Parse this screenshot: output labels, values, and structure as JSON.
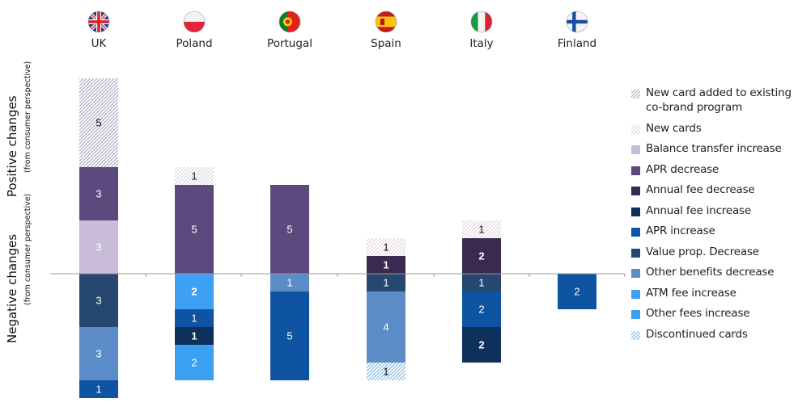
{
  "chart_data": {
    "type": "bar",
    "subtype": "stacked diverging",
    "categories": [
      "UK",
      "Poland",
      "Portugal",
      "Spain",
      "Italy",
      "Finland"
    ],
    "axis_titles": {
      "positive": "Positive changes",
      "positive_sub": "(from consumer perspective)",
      "negative": "Negative changes",
      "negative_sub": "(from consumer perspective)"
    },
    "legend_position": "right",
    "series": [
      {
        "name": "New card added to existing co-brand program",
        "color": "#8a7fa8",
        "pattern": "hatch-dense",
        "values": [
          5,
          0,
          0,
          0,
          0,
          0
        ]
      },
      {
        "name": "New cards",
        "color": "#c9b8c8",
        "pattern": "hatch-light",
        "values": [
          0,
          1,
          0,
          1,
          1,
          0
        ]
      },
      {
        "name": "Balance transfer increase",
        "color": "#c8bcd8",
        "pattern": "solid",
        "values": [
          3,
          0,
          0,
          0,
          0,
          0
        ]
      },
      {
        "name": "APR decrease",
        "color": "#5e497f",
        "pattern": "solid",
        "values": [
          3,
          5,
          5,
          0,
          0,
          0
        ]
      },
      {
        "name": "Annual fee decrease",
        "color": "#3b2a4f",
        "pattern": "solid",
        "values": [
          0,
          0,
          0,
          1,
          2,
          0
        ]
      },
      {
        "name": "Annual fee increase",
        "color": "#0e305a",
        "pattern": "solid",
        "values": [
          0,
          1,
          0,
          0,
          2,
          0
        ]
      },
      {
        "name": "APR increase",
        "color": "#0e54a3",
        "pattern": "solid",
        "values": [
          1,
          1,
          5,
          0,
          2,
          2
        ]
      },
      {
        "name": "Value prop.  Decrease",
        "color": "#26476f",
        "pattern": "solid",
        "values": [
          3,
          0,
          0,
          1,
          1,
          0
        ]
      },
      {
        "name": "Other benefits decrease",
        "color": "#5b8cc8",
        "pattern": "solid",
        "values": [
          3,
          0,
          1,
          4,
          0,
          0
        ]
      },
      {
        "name": "ATM fee increase",
        "color": "#3ea0f5",
        "pattern": "solid",
        "values": [
          0,
          2,
          0,
          0,
          0,
          0
        ]
      },
      {
        "name": "Other fees increase",
        "color": "#3aa0f2",
        "pattern": "solid",
        "values": [
          0,
          2,
          0,
          0,
          0,
          0
        ]
      },
      {
        "name": "Discontinued cards",
        "color": "#4a9ad6",
        "pattern": "hatch-blue",
        "values": [
          0,
          0,
          0,
          1,
          0,
          0
        ]
      }
    ],
    "stacks": {
      "UK": {
        "positive": [
          {
            "series": "Balance transfer increase",
            "value": 3
          },
          {
            "series": "APR decrease",
            "value": 3
          },
          {
            "series": "New card added to existing co-brand program",
            "value": 5
          }
        ],
        "negative": [
          {
            "series": "Value prop.  Decrease",
            "value": 3
          },
          {
            "series": "Other benefits decrease",
            "value": 3
          },
          {
            "series": "APR increase",
            "value": 1
          }
        ]
      },
      "Poland": {
        "positive": [
          {
            "series": "APR decrease",
            "value": 5
          },
          {
            "series": "New cards",
            "value": 1
          }
        ],
        "negative": [
          {
            "series": "ATM fee increase",
            "value": 2
          },
          {
            "series": "APR increase",
            "value": 1
          },
          {
            "series": "Annual fee increase",
            "value": 1
          },
          {
            "series": "Other fees increase",
            "value": 2
          }
        ]
      },
      "Portugal": {
        "positive": [
          {
            "series": "APR decrease",
            "value": 5
          }
        ],
        "negative": [
          {
            "series": "Other benefits decrease",
            "value": 1
          },
          {
            "series": "APR increase",
            "value": 5
          }
        ]
      },
      "Spain": {
        "positive": [
          {
            "series": "Annual fee decrease",
            "value": 1
          },
          {
            "series": "New cards",
            "value": 1
          }
        ],
        "negative": [
          {
            "series": "Value prop.  Decrease",
            "value": 1
          },
          {
            "series": "Other benefits decrease",
            "value": 4
          },
          {
            "series": "Discontinued cards",
            "value": 1
          }
        ]
      },
      "Italy": {
        "positive": [
          {
            "series": "Annual fee decrease",
            "value": 2
          },
          {
            "series": "New cards",
            "value": 1
          }
        ],
        "negative": [
          {
            "series": "Value prop.  Decrease",
            "value": 1
          },
          {
            "series": "APR increase",
            "value": 2
          },
          {
            "series": "Annual fee increase",
            "value": 2
          }
        ]
      },
      "Finland": {
        "positive": [],
        "negative": [
          {
            "series": "APR increase",
            "value": 2
          }
        ]
      }
    }
  }
}
